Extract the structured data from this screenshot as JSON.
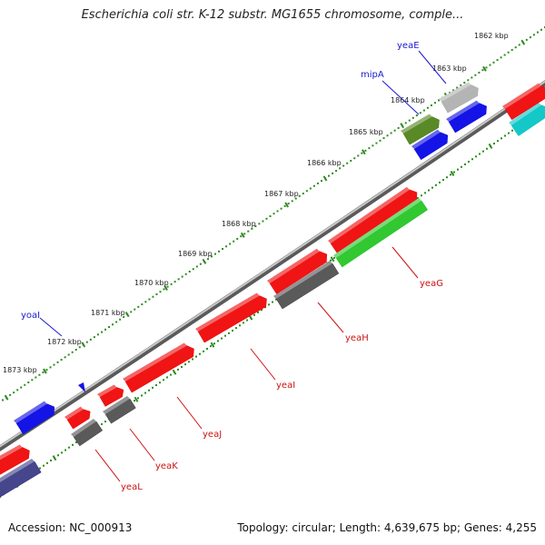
{
  "title": "Escherichia coli str. K-12 substr. MG1655 chromosome, comple...",
  "footer": {
    "accession": "Accession: NC_000913",
    "summary": "Topology: circular; Length: 4,639,675 bp; Genes: 4,255"
  },
  "colors": {
    "backbone": "#8c8c8c",
    "tick": "#2e8b20",
    "label_top": "#1a1acc",
    "label_bottom": "#cc1111",
    "kbp_text": "#222222"
  },
  "kbp_labels": [
    "1862 kbp",
    "1863 kbp",
    "1864 kbp",
    "1865 kbp",
    "1866 kbp",
    "1867 kbp",
    "1868 kbp",
    "1869 kbp",
    "1870 kbp",
    "1871 kbp",
    "1872 kbp",
    "1873 kbp"
  ],
  "genes_top": [
    "yeaE",
    "mipA",
    "yoaI"
  ],
  "genes_bottom": [
    "yeaG",
    "yeaH",
    "yeaI",
    "yeaJ",
    "yeaK",
    "yeaL"
  ]
}
